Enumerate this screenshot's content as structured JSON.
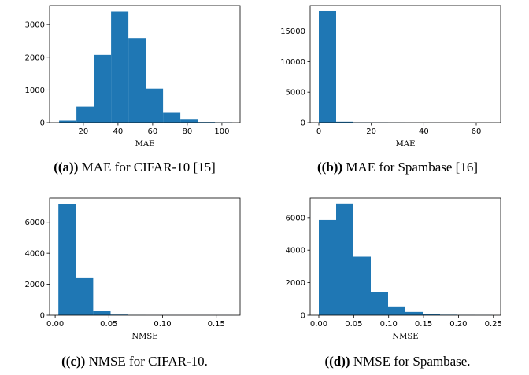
{
  "chart_data": [
    {
      "type": "bar",
      "histogram": true,
      "caption_tag": "((a))",
      "caption_text": " MAE for CIFAR-10 [15]",
      "xlabel": "MAE",
      "ylabel": "",
      "xlim": [
        0.5,
        110.5
      ],
      "ylim": [
        0,
        3580
      ],
      "xticks": [
        20,
        40,
        60,
        80,
        100
      ],
      "yticks": [
        0,
        1000,
        2000,
        3000
      ],
      "bin_edges": [
        6,
        16,
        26,
        36,
        46,
        56,
        66,
        76,
        86,
        96,
        106
      ],
      "values": [
        60,
        490,
        2070,
        3400,
        2590,
        1040,
        300,
        90,
        20,
        10
      ],
      "color": "#1f77b4"
    },
    {
      "type": "bar",
      "histogram": true,
      "caption_tag": "((b))",
      "caption_text": " MAE for Spambase [16]",
      "xlabel": "MAE",
      "ylabel": "",
      "xlim": [
        -3.3,
        69.3
      ],
      "ylim": [
        0,
        19200
      ],
      "xticks": [
        0,
        20,
        40,
        60
      ],
      "yticks": [
        0,
        5000,
        10000,
        15000
      ],
      "bin_edges": [
        0,
        6.6,
        13.2,
        19.8,
        26.4,
        33,
        39.6,
        46.2,
        52.8,
        59.4,
        66
      ],
      "values": [
        18300,
        150,
        60,
        40,
        20,
        10,
        10,
        5,
        5,
        5
      ],
      "color": "#1f77b4"
    },
    {
      "type": "bar",
      "histogram": true,
      "caption_tag": "((c))",
      "caption_text": " NMSE for CIFAR-10.",
      "xlabel": "NMSE",
      "ylabel": "",
      "xlim": [
        -0.0052,
        0.1722
      ],
      "ylim": [
        0,
        7560
      ],
      "xticks": [
        0.0,
        0.05,
        0.1,
        0.15
      ],
      "xtick_labels": [
        "0.00",
        "0.05",
        "0.10",
        "0.15"
      ],
      "yticks": [
        0,
        2000,
        4000,
        6000
      ],
      "bin_edges": [
        0.003,
        0.0192,
        0.0354,
        0.0516,
        0.0678,
        0.084,
        0.1002,
        0.1164,
        0.1326,
        0.1488,
        0.165
      ],
      "values": [
        7200,
        2440,
        300,
        40,
        10,
        5,
        5,
        5,
        5,
        5
      ],
      "color": "#1f77b4"
    },
    {
      "type": "bar",
      "histogram": true,
      "caption_tag": "((d))",
      "caption_text": " NMSE for Spambase.",
      "xlabel": "NMSE",
      "ylabel": "",
      "xlim": [
        -0.0124,
        0.2604
      ],
      "ylim": [
        0,
        7200
      ],
      "xticks": [
        0.0,
        0.05,
        0.1,
        0.15,
        0.2,
        0.25
      ],
      "xtick_labels": [
        "0.00",
        "0.05",
        "0.10",
        "0.15",
        "0.20",
        "0.25"
      ],
      "yticks": [
        0,
        2000,
        4000,
        6000
      ],
      "bin_edges": [
        0,
        0.0248,
        0.0496,
        0.0744,
        0.0992,
        0.124,
        0.1488,
        0.1736,
        0.1984,
        0.2232,
        0.248
      ],
      "values": [
        5850,
        6870,
        3600,
        1420,
        540,
        200,
        60,
        30,
        15,
        10
      ],
      "color": "#1f77b4"
    }
  ]
}
